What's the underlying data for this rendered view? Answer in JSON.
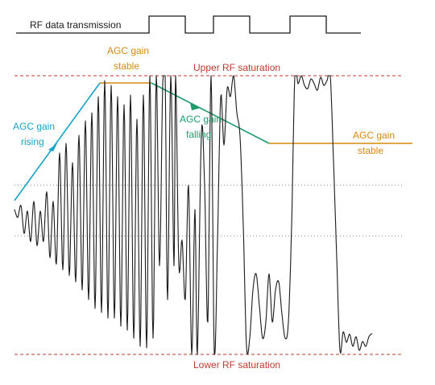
{
  "rf_label": "RF data transmission",
  "upper_label": "Upper RF saturation",
  "lower_label": "Lower RF saturation",
  "rising_line1": "AGC gain",
  "rising_line2": "rising",
  "stable1_line1": "AGC gain",
  "stable1_line2": "stable",
  "falling_line1": "AGC gain",
  "falling_line2": "falling",
  "stable2_line1": "AGC gain",
  "stable2_line2": "stable",
  "colors": {
    "saturation": "#c0392b",
    "rising": "#17a2c8",
    "stable": "#d68910",
    "falling": "#1e9b6a",
    "signal": "#1a1a1a",
    "guide": "#888888"
  }
}
